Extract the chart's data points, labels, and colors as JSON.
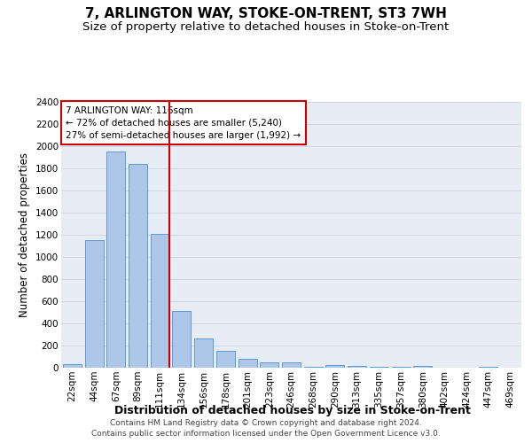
{
  "title": "7, ARLINGTON WAY, STOKE-ON-TRENT, ST3 7WH",
  "subtitle": "Size of property relative to detached houses in Stoke-on-Trent",
  "xlabel": "Distribution of detached houses by size in Stoke-on-Trent",
  "ylabel": "Number of detached properties",
  "categories": [
    "22sqm",
    "44sqm",
    "67sqm",
    "89sqm",
    "111sqm",
    "134sqm",
    "156sqm",
    "178sqm",
    "201sqm",
    "223sqm",
    "246sqm",
    "268sqm",
    "290sqm",
    "313sqm",
    "335sqm",
    "357sqm",
    "380sqm",
    "402sqm",
    "424sqm",
    "447sqm",
    "469sqm"
  ],
  "values": [
    30,
    1150,
    1950,
    1840,
    1210,
    510,
    265,
    155,
    80,
    50,
    45,
    5,
    25,
    20,
    5,
    5,
    20,
    0,
    0,
    5,
    0
  ],
  "bar_color": "#aec6e8",
  "bar_edge_color": "#5b9bd5",
  "property_line_x": 4.42,
  "annotation_title": "7 ARLINGTON WAY: 116sqm",
  "annotation_line1": "← 72% of detached houses are smaller (5,240)",
  "annotation_line2": "27% of semi-detached houses are larger (1,992) →",
  "annotation_box_color": "#ffffff",
  "annotation_box_edge_color": "#cc0000",
  "footer_line1": "Contains HM Land Registry data © Crown copyright and database right 2024.",
  "footer_line2": "Contains public sector information licensed under the Open Government Licence v3.0.",
  "ylim": [
    0,
    2400
  ],
  "yticks": [
    0,
    200,
    400,
    600,
    800,
    1000,
    1200,
    1400,
    1600,
    1800,
    2000,
    2200,
    2400
  ],
  "grid_color": "#d0d8e8",
  "bg_color": "#e8edf5",
  "title_fontsize": 11,
  "subtitle_fontsize": 9.5,
  "ylabel_fontsize": 8.5,
  "xlabel_fontsize": 9,
  "tick_fontsize": 7.5,
  "annotation_fontsize": 7.5,
  "footer_fontsize": 6.5
}
